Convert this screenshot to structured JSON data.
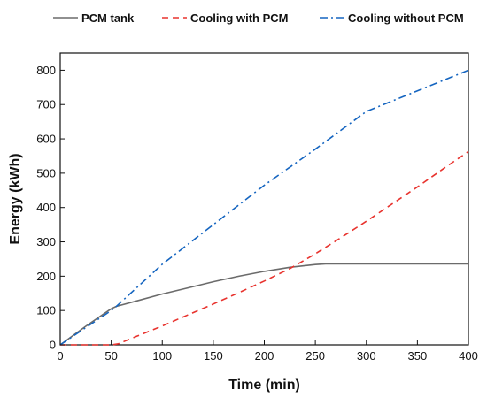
{
  "chart_data": {
    "type": "line",
    "title": "",
    "xlabel": "Time (min)",
    "ylabel": "Energy (kWh)",
    "xlim": [
      0,
      400
    ],
    "ylim": [
      0,
      850
    ],
    "xticks": [
      0,
      50,
      100,
      150,
      200,
      250,
      300,
      350,
      400
    ],
    "yticks": [
      0,
      100,
      200,
      300,
      400,
      500,
      600,
      700,
      800
    ],
    "xtick_labels": [
      "0",
      "50",
      "100",
      "150",
      "200",
      "250",
      "300",
      "350",
      "400"
    ],
    "ytick_labels": [
      "0",
      "100",
      "200",
      "300",
      "400",
      "500",
      "600",
      "700",
      "800"
    ],
    "grid": false,
    "legend_position": "top",
    "series": [
      {
        "name": "PCM tank",
        "color": "#6b6b6b",
        "dash": "solid",
        "x": [
          0,
          25,
          50,
          55,
          75,
          100,
          125,
          150,
          175,
          200,
          225,
          250,
          260,
          270,
          300,
          350,
          400
        ],
        "y": [
          0,
          54,
          105,
          112,
          128,
          148,
          166,
          184,
          200,
          214,
          226,
          234,
          236,
          236,
          236,
          236,
          236
        ]
      },
      {
        "name": "Cooling with PCM",
        "color": "#e8332e",
        "dash": "dashed",
        "x": [
          0,
          25,
          50,
          57,
          75,
          100,
          125,
          150,
          175,
          200,
          225,
          250,
          275,
          300,
          325,
          350,
          375,
          400
        ],
        "y": [
          0,
          0,
          0,
          3,
          25,
          55,
          87,
          119,
          152,
          186,
          222,
          265,
          312,
          360,
          410,
          460,
          512,
          563
        ]
      },
      {
        "name": "Cooling without PCM",
        "color": "#1565c0",
        "dash": "dashdot",
        "x": [
          0,
          50,
          55,
          100,
          150,
          200,
          250,
          300,
          350,
          400
        ],
        "y": [
          0,
          100,
          112,
          235,
          350,
          465,
          570,
          680,
          740,
          800
        ]
      }
    ]
  }
}
